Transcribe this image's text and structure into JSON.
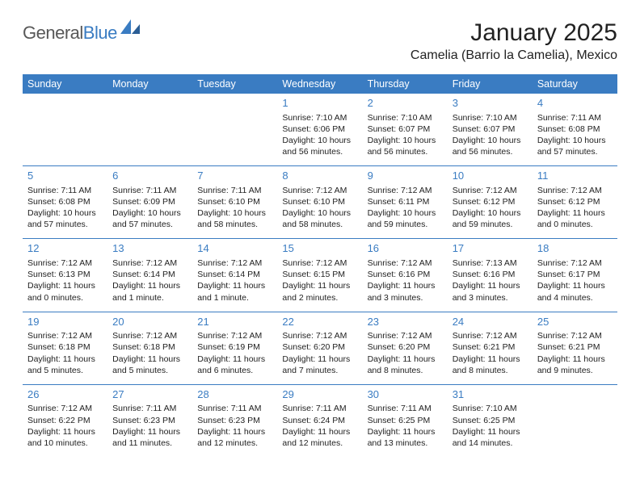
{
  "logo": {
    "text1": "General",
    "text2": "Blue"
  },
  "title": "January 2025",
  "location": "Camelia (Barrio la Camelia), Mexico",
  "colors": {
    "header_bg": "#3a7cc2",
    "header_text": "#ffffff",
    "accent": "#3a7cc2",
    "body_text": "#222222",
    "background": "#ffffff",
    "logo_gray": "#585858"
  },
  "typography": {
    "title_fontsize": 30,
    "location_fontsize": 16,
    "dayheader_fontsize": 12.5,
    "daynum_fontsize": 13,
    "cell_fontsize": 10.5
  },
  "day_headers": [
    "Sunday",
    "Monday",
    "Tuesday",
    "Wednesday",
    "Thursday",
    "Friday",
    "Saturday"
  ],
  "weeks": [
    [
      null,
      null,
      null,
      {
        "n": "1",
        "sr": "7:10 AM",
        "ss": "6:06 PM",
        "dl": "10 hours and 56 minutes."
      },
      {
        "n": "2",
        "sr": "7:10 AM",
        "ss": "6:07 PM",
        "dl": "10 hours and 56 minutes."
      },
      {
        "n": "3",
        "sr": "7:10 AM",
        "ss": "6:07 PM",
        "dl": "10 hours and 56 minutes."
      },
      {
        "n": "4",
        "sr": "7:11 AM",
        "ss": "6:08 PM",
        "dl": "10 hours and 57 minutes."
      }
    ],
    [
      {
        "n": "5",
        "sr": "7:11 AM",
        "ss": "6:08 PM",
        "dl": "10 hours and 57 minutes."
      },
      {
        "n": "6",
        "sr": "7:11 AM",
        "ss": "6:09 PM",
        "dl": "10 hours and 57 minutes."
      },
      {
        "n": "7",
        "sr": "7:11 AM",
        "ss": "6:10 PM",
        "dl": "10 hours and 58 minutes."
      },
      {
        "n": "8",
        "sr": "7:12 AM",
        "ss": "6:10 PM",
        "dl": "10 hours and 58 minutes."
      },
      {
        "n": "9",
        "sr": "7:12 AM",
        "ss": "6:11 PM",
        "dl": "10 hours and 59 minutes."
      },
      {
        "n": "10",
        "sr": "7:12 AM",
        "ss": "6:12 PM",
        "dl": "10 hours and 59 minutes."
      },
      {
        "n": "11",
        "sr": "7:12 AM",
        "ss": "6:12 PM",
        "dl": "11 hours and 0 minutes."
      }
    ],
    [
      {
        "n": "12",
        "sr": "7:12 AM",
        "ss": "6:13 PM",
        "dl": "11 hours and 0 minutes."
      },
      {
        "n": "13",
        "sr": "7:12 AM",
        "ss": "6:14 PM",
        "dl": "11 hours and 1 minute."
      },
      {
        "n": "14",
        "sr": "7:12 AM",
        "ss": "6:14 PM",
        "dl": "11 hours and 1 minute."
      },
      {
        "n": "15",
        "sr": "7:12 AM",
        "ss": "6:15 PM",
        "dl": "11 hours and 2 minutes."
      },
      {
        "n": "16",
        "sr": "7:12 AM",
        "ss": "6:16 PM",
        "dl": "11 hours and 3 minutes."
      },
      {
        "n": "17",
        "sr": "7:13 AM",
        "ss": "6:16 PM",
        "dl": "11 hours and 3 minutes."
      },
      {
        "n": "18",
        "sr": "7:12 AM",
        "ss": "6:17 PM",
        "dl": "11 hours and 4 minutes."
      }
    ],
    [
      {
        "n": "19",
        "sr": "7:12 AM",
        "ss": "6:18 PM",
        "dl": "11 hours and 5 minutes."
      },
      {
        "n": "20",
        "sr": "7:12 AM",
        "ss": "6:18 PM",
        "dl": "11 hours and 5 minutes."
      },
      {
        "n": "21",
        "sr": "7:12 AM",
        "ss": "6:19 PM",
        "dl": "11 hours and 6 minutes."
      },
      {
        "n": "22",
        "sr": "7:12 AM",
        "ss": "6:20 PM",
        "dl": "11 hours and 7 minutes."
      },
      {
        "n": "23",
        "sr": "7:12 AM",
        "ss": "6:20 PM",
        "dl": "11 hours and 8 minutes."
      },
      {
        "n": "24",
        "sr": "7:12 AM",
        "ss": "6:21 PM",
        "dl": "11 hours and 8 minutes."
      },
      {
        "n": "25",
        "sr": "7:12 AM",
        "ss": "6:21 PM",
        "dl": "11 hours and 9 minutes."
      }
    ],
    [
      {
        "n": "26",
        "sr": "7:12 AM",
        "ss": "6:22 PM",
        "dl": "11 hours and 10 minutes."
      },
      {
        "n": "27",
        "sr": "7:11 AM",
        "ss": "6:23 PM",
        "dl": "11 hours and 11 minutes."
      },
      {
        "n": "28",
        "sr": "7:11 AM",
        "ss": "6:23 PM",
        "dl": "11 hours and 12 minutes."
      },
      {
        "n": "29",
        "sr": "7:11 AM",
        "ss": "6:24 PM",
        "dl": "11 hours and 12 minutes."
      },
      {
        "n": "30",
        "sr": "7:11 AM",
        "ss": "6:25 PM",
        "dl": "11 hours and 13 minutes."
      },
      {
        "n": "31",
        "sr": "7:10 AM",
        "ss": "6:25 PM",
        "dl": "11 hours and 14 minutes."
      },
      null
    ]
  ],
  "labels": {
    "sunrise": "Sunrise:",
    "sunset": "Sunset:",
    "daylight": "Daylight:"
  }
}
